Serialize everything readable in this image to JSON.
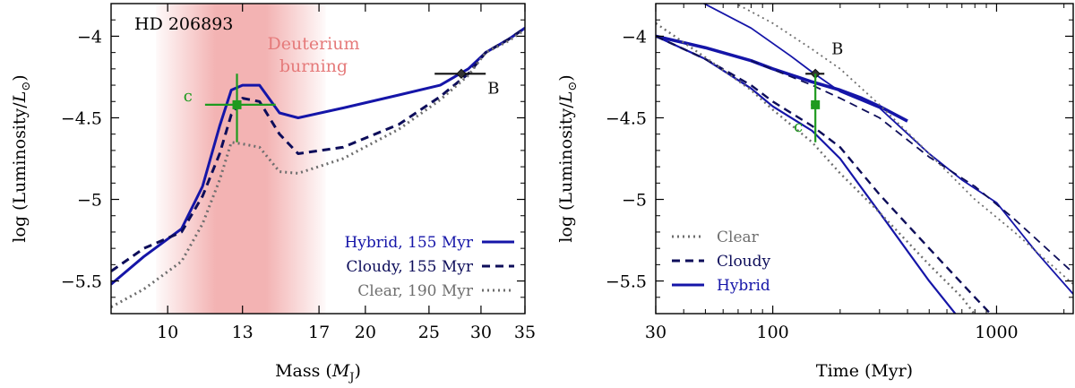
{
  "colors": {
    "hybrid": "#1515a8",
    "cloudy": "#0d0d5a",
    "clear": "#6e6e6e",
    "planet_c": "#1e9a1e",
    "companion_b": "#111111",
    "deuterium": "#ef9a9a",
    "deuterium_text": "#e57a7a"
  },
  "chart_data": [
    {
      "type": "line",
      "id": "mass",
      "xscale": "log",
      "xlim": [
        8.2,
        35
      ],
      "ylim": [
        -5.7,
        -3.8
      ],
      "xlabel_main": "Mass (",
      "xlabel_sym": "M",
      "xlabel_sub": "J",
      "xlabel_end": ")",
      "ylabel_main": "log (Luminosity/",
      "ylabel_sym": "L",
      "ylabel_sub": "⊙",
      "ylabel_end": ")",
      "xticks": [
        10,
        13,
        17,
        20,
        25,
        30,
        35
      ],
      "xtick_labels": [
        "10",
        "13",
        "17",
        "20",
        "25",
        "30",
        "35"
      ],
      "yticks": [
        -5.5,
        -5,
        -4.5,
        -4
      ],
      "ytick_labels": [
        "−5.5",
        "−5",
        "−4.5",
        "−4"
      ],
      "title": "HD 206893",
      "band_label_1": "Deuterium",
      "band_label_2": "burning",
      "band_range": [
        9.6,
        17.4
      ],
      "band_peak": [
        12.4,
        14.6
      ],
      "series": [
        {
          "name": "Hybrid, 155 Myr",
          "style": "solid",
          "color": "hybrid",
          "x": [
            8.2,
            9.2,
            10.5,
            11.3,
            12.0,
            12.5,
            13.0,
            13.8,
            14.8,
            15.8,
            18.5,
            22.5,
            26.0,
            28.7,
            30.5,
            33.0,
            35.0
          ],
          "y": [
            -5.52,
            -5.35,
            -5.18,
            -4.92,
            -4.55,
            -4.33,
            -4.3,
            -4.3,
            -4.47,
            -4.5,
            -4.44,
            -4.36,
            -4.3,
            -4.2,
            -4.1,
            -4.02,
            -3.95
          ]
        },
        {
          "name": "Cloudy, 155 Myr",
          "style": "dashed",
          "color": "cloudy",
          "x": [
            8.2,
            9.2,
            10.5,
            11.3,
            12.0,
            12.5,
            13.0,
            13.8,
            14.8,
            15.8,
            18.5,
            22.5,
            26.0,
            28.7,
            30.5,
            33.0,
            35.0
          ],
          "y": [
            -5.44,
            -5.3,
            -5.2,
            -4.98,
            -4.72,
            -4.48,
            -4.38,
            -4.4,
            -4.6,
            -4.72,
            -4.68,
            -4.54,
            -4.37,
            -4.23,
            -4.1,
            -4.02,
            -3.95
          ]
        },
        {
          "name": "Clear, 190 Myr",
          "style": "dotted",
          "color": "clear",
          "x": [
            8.2,
            9.2,
            10.5,
            11.3,
            12.0,
            12.5,
            13.0,
            13.8,
            14.8,
            15.8,
            18.5,
            22.5,
            26.0,
            28.7,
            30.5,
            33.0,
            35.0
          ],
          "y": [
            -5.66,
            -5.55,
            -5.38,
            -5.15,
            -4.88,
            -4.65,
            -4.66,
            -4.68,
            -4.83,
            -4.84,
            -4.75,
            -4.57,
            -4.39,
            -4.24,
            -4.1,
            -4.03,
            -3.96
          ]
        }
      ],
      "points": [
        {
          "label": "c",
          "color": "planet_c",
          "shape": "square",
          "x": 12.75,
          "y": -4.42,
          "xlo": 11.4,
          "xhi": 14.6,
          "ylo": -4.65,
          "yhi": -4.23
        },
        {
          "label": "B",
          "color": "companion_b",
          "shape": "diamond",
          "x": 28.0,
          "y": -4.23,
          "xlo": 25.5,
          "xhi": 30.5,
          "ylo": -4.23,
          "yhi": -4.23
        }
      ]
    },
    {
      "type": "line",
      "id": "time",
      "xscale": "log",
      "xlim": [
        30,
        2200
      ],
      "ylim": [
        -5.7,
        -3.8
      ],
      "xlabel_main": "Time (Myr)",
      "ylabel_main": "log (Luminosity/",
      "ylabel_sym": "L",
      "ylabel_sub": "⊙",
      "ylabel_end": ")",
      "xticks": [
        30,
        100,
        1000
      ],
      "xtick_labels": [
        "30",
        "100",
        "1000"
      ],
      "yticks": [
        -5.5,
        -5,
        -4.5,
        -4
      ],
      "ytick_labels": [
        "−5.5",
        "−5",
        "−4.5",
        "−4"
      ],
      "legend": [
        {
          "name": "Clear",
          "style": "dotted",
          "color": "clear"
        },
        {
          "name": "Cloudy",
          "style": "dashed",
          "color": "cloudy"
        },
        {
          "name": "Hybrid",
          "style": "solid",
          "color": "hybrid"
        }
      ],
      "series": [
        {
          "name": "Hybrid (c track)",
          "style": "solid",
          "color": "hybrid",
          "width": 2.2,
          "x": [
            30,
            50,
            80,
            100,
            150,
            200,
            300,
            500,
            800,
            1200
          ],
          "y": [
            -4.0,
            -4.14,
            -4.32,
            -4.43,
            -4.58,
            -4.75,
            -5.08,
            -5.5,
            -5.85,
            -6.1
          ]
        },
        {
          "name": "Hybrid (B thick)",
          "style": "solid",
          "color": "hybrid",
          "width": 3.6,
          "x": [
            30,
            50,
            80,
            100,
            150,
            200,
            250,
            300,
            400
          ],
          "y": [
            -4.0,
            -4.07,
            -4.15,
            -4.2,
            -4.28,
            -4.33,
            -4.38,
            -4.43,
            -4.52
          ]
        },
        {
          "name": "Hybrid (upper)",
          "style": "solid",
          "color": "hybrid",
          "width": 1.8,
          "x": [
            42,
            80,
            120,
            150,
            200,
            300,
            500,
            700,
            1000,
            1500,
            2200
          ],
          "y": [
            -3.75,
            -3.95,
            -4.12,
            -4.22,
            -4.34,
            -4.44,
            -4.72,
            -4.88,
            -5.02,
            -5.32,
            -5.58
          ]
        },
        {
          "name": "Cloudy (c track)",
          "style": "dashed",
          "color": "cloudy",
          "width": 2.4,
          "x": [
            30,
            50,
            80,
            100,
            150,
            200,
            300,
            500,
            800,
            1100
          ],
          "y": [
            -4.0,
            -4.14,
            -4.3,
            -4.4,
            -4.55,
            -4.68,
            -4.97,
            -5.3,
            -5.6,
            -5.8
          ]
        },
        {
          "name": "Cloudy (B)",
          "style": "dashed",
          "color": "cloudy",
          "width": 1.8,
          "x": [
            80,
            150,
            200,
            300,
            500,
            800,
            1200,
            2200
          ],
          "y": [
            -4.15,
            -4.3,
            -4.38,
            -4.5,
            -4.74,
            -4.92,
            -5.12,
            -5.45
          ]
        },
        {
          "name": "Clear (c track)",
          "style": "dotted",
          "color": "clear",
          "width": 2.4,
          "x": [
            30,
            50,
            80,
            100,
            150,
            200,
            300,
            500,
            700,
            900
          ],
          "y": [
            -3.92,
            -4.13,
            -4.33,
            -4.45,
            -4.65,
            -4.84,
            -5.08,
            -5.4,
            -5.6,
            -5.8
          ]
        },
        {
          "name": "Clear (upper)",
          "style": "dotted",
          "color": "clear",
          "width": 1.8,
          "x": [
            50,
            100,
            150,
            200,
            300,
            500,
            800,
            1200,
            2200
          ],
          "y": [
            -3.7,
            -3.92,
            -4.08,
            -4.2,
            -4.42,
            -4.72,
            -5.0,
            -5.2,
            -5.52
          ]
        }
      ],
      "points": [
        {
          "label": "B",
          "color": "companion_b",
          "shape": "diamond",
          "x": 155,
          "y": -4.23,
          "xlo": 140,
          "xhi": 170,
          "ylo": -4.23,
          "yhi": -4.23
        },
        {
          "label": "c",
          "color": "planet_c",
          "shape": "square",
          "x": 155,
          "y": -4.42,
          "xlo": 148,
          "xhi": 162,
          "ylo": -4.65,
          "yhi": -4.23
        }
      ]
    }
  ]
}
